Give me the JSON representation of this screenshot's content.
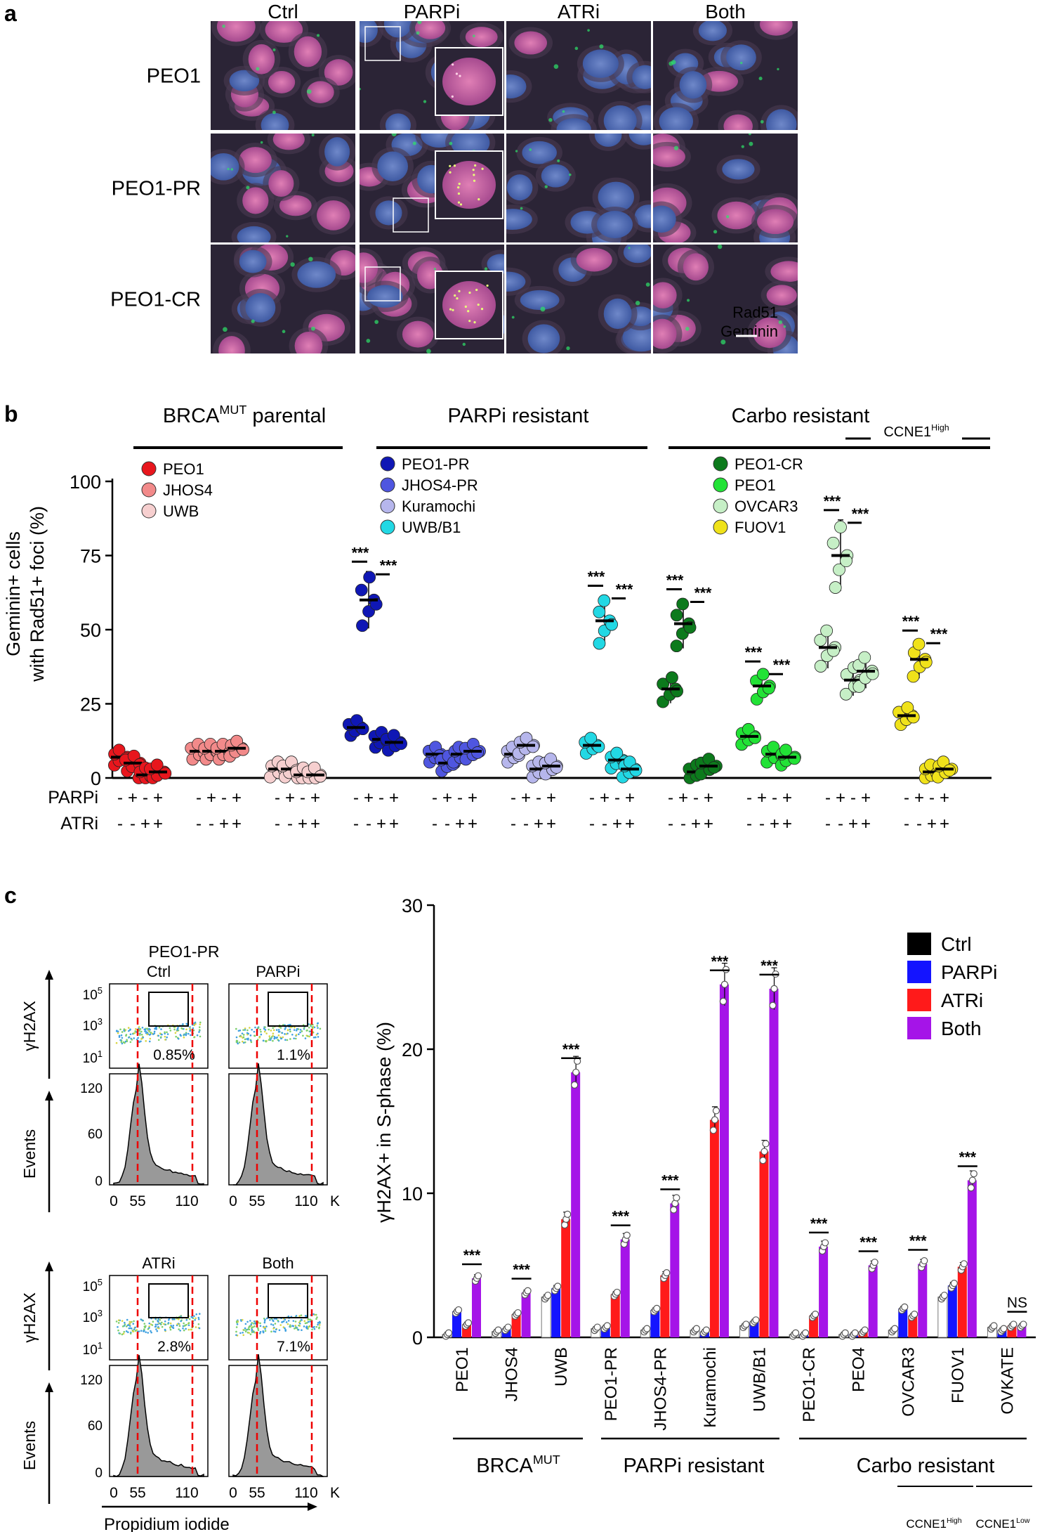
{
  "panel_a": {
    "label": "a",
    "columns": [
      "Ctrl",
      "PARPi",
      "ATRi",
      "Both"
    ],
    "rows": [
      "PEO1",
      "PEO1-PR",
      "PEO1-CR"
    ],
    "stain_green": "Rad51",
    "stain_red": "Geminin",
    "colors": {
      "green": "#2ee66a",
      "red": "#ff2a6e"
    }
  },
  "panel_b": {
    "label": "b",
    "chart_data": {
      "type": "scatter",
      "ylabel_line1": "Geminin+ cells",
      "ylabel_line2": "with Rad51+ foci (%)",
      "ylim": [
        0,
        100
      ],
      "yticks": [
        "0",
        "25",
        "50",
        "75",
        "100"
      ],
      "row_labels": [
        "PARPi",
        "ATRi"
      ],
      "parpi_signs": [
        "-",
        "+",
        "-",
        "+"
      ],
      "atri_signs": [
        "-",
        "-",
        "+",
        "+"
      ],
      "group_headers": [
        {
          "text": "BRCA",
          "sup": "MUT",
          "suffix": " parental"
        },
        {
          "text": "PARPi resistant",
          "sup": "",
          "suffix": ""
        },
        {
          "text": "Carbo resistant",
          "sup": "",
          "suffix": ""
        }
      ],
      "ccne1_label": {
        "text": "CCNE1",
        "sup": "High"
      },
      "significance": "***",
      "series": [
        {
          "name": "PEO1",
          "color": "#e8161d",
          "values": [
            7,
            5,
            1,
            2
          ]
        },
        {
          "name": "JHOS4",
          "color": "#f28a8a",
          "values": [
            9,
            9,
            9,
            10
          ]
        },
        {
          "name": "UWB",
          "color": "#f6cfcf",
          "values": [
            3,
            3,
            1,
            1
          ]
        },
        {
          "name": "PEO1-PR",
          "color": "#0f17b5",
          "values": [
            17,
            60,
            13,
            12
          ]
        },
        {
          "name": "JHOS4-PR",
          "color": "#4f56e0",
          "values": [
            8,
            5,
            8,
            9
          ]
        },
        {
          "name": "Kuramochi",
          "color": "#b6b6ec",
          "values": [
            8,
            11,
            3,
            4
          ]
        },
        {
          "name": "UWB/B1",
          "color": "#22d8e4",
          "values": [
            11,
            53,
            6,
            3
          ]
        },
        {
          "name": "PEO1-CR",
          "color": "#0c7a1c",
          "values": [
            30,
            52,
            2,
            4
          ]
        },
        {
          "name": "PEO1",
          "color": "#22e236",
          "values": [
            14,
            31,
            8,
            7
          ]
        },
        {
          "name": "OVCAR3",
          "color": "#c6efc6",
          "values": [
            44,
            75,
            33,
            36
          ]
        },
        {
          "name": "FUOV1",
          "color": "#f0e21a",
          "values": [
            21,
            40,
            2,
            3
          ]
        }
      ]
    }
  },
  "panel_c": {
    "label": "c",
    "flow": {
      "title": "PEO1-PR",
      "ylabel_top": "γH2AX",
      "ylabel_bottom": "Events",
      "xlabel": "Propidium iodide",
      "yticks_top": [
        "10",
        "10",
        "10"
      ],
      "yticks_top_exp": [
        "5",
        "3",
        "1"
      ],
      "yticks_bottom": [
        "120",
        "60",
        "0"
      ],
      "xticks": [
        "0",
        "55",
        "110"
      ],
      "x_unit": "K",
      "panels": [
        {
          "name": "Ctrl",
          "pct": "0.85%"
        },
        {
          "name": "PARPi",
          "pct": "1.1%"
        },
        {
          "name": "ATRi",
          "pct": "2.8%"
        },
        {
          "name": "Both",
          "pct": "7.1%"
        }
      ]
    },
    "chart_data": {
      "type": "bar",
      "ylabel": "γH2AX+ in S-phase (%)",
      "ylim": [
        0,
        30
      ],
      "yticks": [
        "0",
        "10",
        "20",
        "30"
      ],
      "categories": [
        "PEO1",
        "JHOS4",
        "UWB",
        "PEO1-PR",
        "JHOS4-PR",
        "Kuramochi",
        "UWB/B1",
        "PEO1-CR",
        "PEO4",
        "OVCAR3",
        "FUOV1",
        "OVKATE"
      ],
      "series": [
        {
          "name": "Ctrl",
          "color": "#000000",
          "values": [
            0.2,
            0.4,
            2.8,
            0.6,
            0.5,
            0.5,
            0.8,
            0.2,
            0.2,
            0.5,
            2.8,
            0.7
          ]
        },
        {
          "name": "PARPi",
          "color": "#1414ff",
          "values": [
            1.8,
            0.6,
            3.4,
            0.7,
            1.9,
            0.4,
            1.1,
            0.2,
            0.2,
            2.0,
            3.6,
            0.5
          ]
        },
        {
          "name": "ATRi",
          "color": "#ff1a1a",
          "values": [
            0.9,
            1.6,
            8.2,
            3.0,
            4.3,
            15.1,
            12.9,
            1.5,
            0.4,
            1.5,
            4.9,
            0.8
          ]
        },
        {
          "name": "Both",
          "color": "#a514e8",
          "values": [
            4.1,
            3.1,
            18.4,
            6.8,
            9.3,
            24.5,
            24.2,
            6.3,
            5.0,
            5.1,
            10.9,
            0.8
          ]
        }
      ],
      "significance": [
        "***",
        "***",
        "***",
        "***",
        "***",
        "***",
        "***",
        "***",
        "***",
        "***",
        "***",
        "NS"
      ],
      "group_labels": [
        {
          "text": "BRCA",
          "sup": "MUT",
          "suffix": ""
        },
        {
          "text": "PARPi resistant",
          "sup": "",
          "suffix": ""
        },
        {
          "text": "Carbo resistant",
          "sup": "",
          "suffix": ""
        }
      ],
      "sub_labels": [
        {
          "text": "CCNE1",
          "sup": "High"
        },
        {
          "text": "CCNE1",
          "sup": "Low"
        }
      ]
    }
  }
}
